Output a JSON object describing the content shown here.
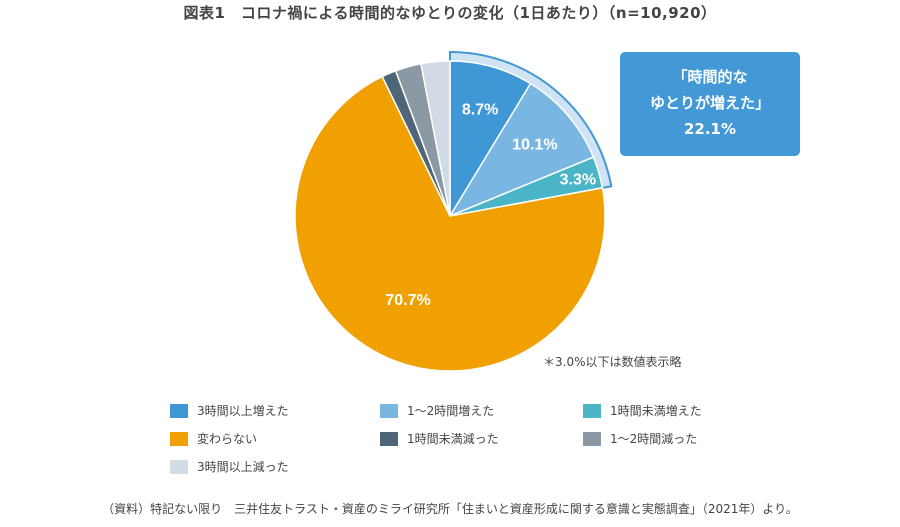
{
  "chart_data": {
    "type": "pie",
    "title": "図表1　コロナ禍による時間的なゆとりの変化（1日あたり）（n=10,920）",
    "slices": [
      {
        "name": "3時間以上増えた",
        "value": 8.7,
        "label": "8.7%",
        "color": "#3f97d5"
      },
      {
        "name": "1〜2時間増えた",
        "value": 10.1,
        "label": "10.1%",
        "color": "#7ab6e2"
      },
      {
        "name": "1時間未満増えた",
        "value": 3.3,
        "label": "3.3%",
        "color": "#4bb5c8"
      },
      {
        "name": "変わらない",
        "value": 70.7,
        "label": "70.7%",
        "color": "#f0a000"
      },
      {
        "name": "1時間未満減った",
        "value": 1.5,
        "label": "",
        "color": "#4f6678"
      },
      {
        "name": "1〜2時間減った",
        "value": 2.7,
        "label": "",
        "color": "#8a99a4"
      },
      {
        "name": "3時間以上減った",
        "value": 3.0,
        "label": "",
        "color": "#d1dae5"
      }
    ],
    "start": "12 o'clock, clockwise",
    "highlight": {
      "line1": "「時間的な",
      "line2": "ゆとりが増えた」",
      "value": "22.1%",
      "color": "#4299d6",
      "ring_color": "#cfe3f4"
    },
    "note": "＊3.0%以下は数値表示略",
    "legend_placement": "bottom"
  },
  "footer": "（資料）特記ない限り　三井住友トラスト・資産のミライ研究所「住まいと資産形成に関する意識と実態調査」（2021年）より。"
}
